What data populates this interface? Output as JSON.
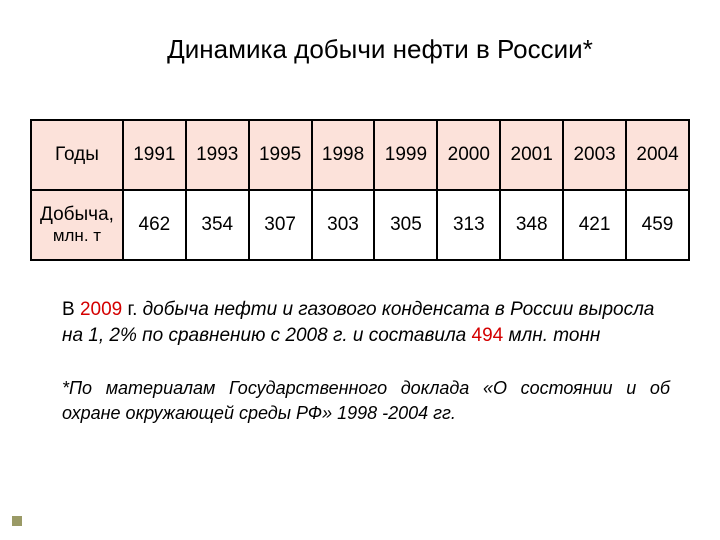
{
  "title": "Динамика добычи нефти в России*",
  "table": {
    "row1_label": "Годы",
    "row2_label": "Добыча,",
    "row2_sub": "млн. т",
    "years": [
      "1991",
      "1993",
      "1995",
      "1998",
      "1999",
      "2000",
      "2001",
      "2003",
      "2004"
    ],
    "values": [
      "462",
      "354",
      "307",
      "303",
      "305",
      "313",
      "348",
      "421",
      "459"
    ],
    "header_bg": "#fce2da",
    "cell_bg": "#ffffff",
    "border_color": "#000000"
  },
  "para1": {
    "pref": "В ",
    "year": "2009",
    "mid1": " г.",
    "body": " добыча нефти и газового конденсата в России выросла на 1, 2% по сравнению с 2008 г. и составила ",
    "num": "494",
    "tail": " млн. тонн"
  },
  "para2": "*По материалам Государственного доклада «О состоянии и об охране окружающей среды РФ» 1998 -2004 гг.",
  "colors": {
    "red": "#d40000",
    "bullet": "#9a9a66"
  }
}
